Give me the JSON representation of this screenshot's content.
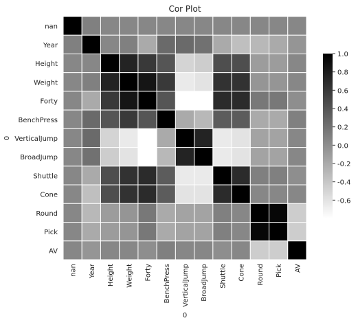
{
  "chart_data": {
    "type": "heatmap",
    "title": "Cor Plot",
    "xlabel": "0",
    "ylabel": "0",
    "x_labels": [
      "nan",
      "Year",
      "Height",
      "Weight",
      "Forty",
      "BenchPress",
      "VerticalJump",
      "BroadJump",
      "Shuttle",
      "Cone",
      "Round",
      "Pick",
      "AV"
    ],
    "y_labels": [
      "nan",
      "Year",
      "Height",
      "Weight",
      "Forty",
      "BenchPress",
      "VerticalJump",
      "BroadJump",
      "Shuttle",
      "Cone",
      "Round",
      "Pick",
      "AV"
    ],
    "values": [
      [
        1.0,
        0.1,
        0.05,
        0.05,
        0.05,
        0.05,
        0.05,
        0.05,
        0.05,
        0.05,
        0.05,
        0.05,
        0.05
      ],
      [
        0.1,
        1.0,
        0.05,
        0.1,
        -0.2,
        0.25,
        0.25,
        0.2,
        -0.2,
        -0.35,
        -0.3,
        -0.2,
        -0.05
      ],
      [
        0.05,
        0.05,
        1.0,
        0.75,
        0.6,
        0.4,
        -0.5,
        -0.45,
        0.45,
        0.45,
        -0.1,
        -0.1,
        0.05
      ],
      [
        0.05,
        0.1,
        0.75,
        1.0,
        0.85,
        0.6,
        -0.65,
        -0.6,
        0.65,
        0.65,
        -0.05,
        -0.05,
        0.05
      ],
      [
        0.05,
        -0.2,
        0.6,
        0.85,
        1.0,
        0.4,
        -0.85,
        -0.8,
        0.7,
        0.7,
        0.15,
        0.15,
        0.0
      ],
      [
        0.05,
        0.25,
        0.4,
        0.6,
        0.4,
        1.0,
        -0.2,
        -0.3,
        0.35,
        0.35,
        -0.2,
        -0.2,
        0.1
      ],
      [
        0.05,
        0.25,
        -0.5,
        -0.65,
        -0.85,
        -0.2,
        1.0,
        0.75,
        -0.65,
        -0.6,
        -0.15,
        -0.15,
        0.05
      ],
      [
        0.05,
        0.2,
        -0.45,
        -0.6,
        -0.8,
        -0.3,
        0.75,
        1.0,
        -0.65,
        -0.6,
        -0.15,
        -0.15,
        0.05
      ],
      [
        0.05,
        -0.2,
        0.45,
        0.65,
        0.7,
        0.35,
        -0.65,
        -0.65,
        1.0,
        0.7,
        0.1,
        0.1,
        0.0
      ],
      [
        0.05,
        -0.35,
        0.45,
        0.65,
        0.7,
        0.35,
        -0.6,
        -0.6,
        0.7,
        1.0,
        0.05,
        0.05,
        0.05
      ],
      [
        0.05,
        -0.3,
        -0.1,
        -0.05,
        0.15,
        -0.2,
        -0.15,
        -0.15,
        0.1,
        0.05,
        1.0,
        0.95,
        -0.45
      ],
      [
        0.05,
        -0.2,
        -0.1,
        -0.05,
        0.15,
        -0.2,
        -0.15,
        -0.15,
        0.1,
        0.05,
        0.95,
        1.0,
        -0.45
      ],
      [
        0.05,
        -0.05,
        0.05,
        0.05,
        0.0,
        0.1,
        0.05,
        0.05,
        0.0,
        0.05,
        -0.45,
        -0.45,
        1.0
      ]
    ],
    "colorbar": {
      "min": -0.8,
      "max": 1.0,
      "ticks": [
        "1.0",
        "0.8",
        "0.6",
        "0.4",
        "0.2",
        "0.0",
        "-0.2",
        "-0.4",
        "-0.6"
      ],
      "tick_values": [
        1.0,
        0.8,
        0.6,
        0.4,
        0.2,
        0.0,
        -0.2,
        -0.4,
        -0.6
      ]
    },
    "colormap": {
      "low": "#ffffff",
      "high": "#000000"
    },
    "grid": false
  }
}
